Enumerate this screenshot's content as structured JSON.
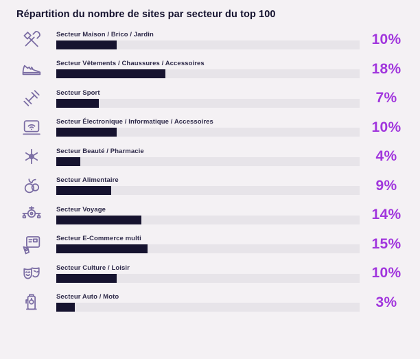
{
  "page": {
    "title": "Répartition du nombre de sites par secteur du top 100",
    "background": "#f4f1f4"
  },
  "colors": {
    "accent_percent": "#a136dd",
    "bar_fill": "#16132f",
    "bar_track": "#e7e4e9",
    "title_text": "#14122e",
    "label_text": "#2e2a49",
    "icon_stroke": "#5c4b8f"
  },
  "chart_data": {
    "type": "bar",
    "orientation": "horizontal",
    "title": "Répartition du nombre de sites par secteur du top 100",
    "unit": "%",
    "xlabel": "",
    "ylabel": "",
    "grid": false,
    "legend": "none",
    "value_axis_max": 50,
    "categories": [
      "Secteur Maison / Brico / Jardin",
      "Secteur Vêtements /  Chaussures / Accessoires",
      "Secteur Sport",
      "Secteur Électronique / Informatique / Accessoires",
      "Secteur Beauté / Pharmacie",
      "Secteur Alimentaire",
      "Secteur Voyage",
      "Secteur E-Commerce multi",
      "Secteur Culture / Loisir",
      "Secteur Auto / Moto"
    ],
    "values": [
      10,
      18,
      7,
      10,
      4,
      9,
      14,
      15,
      10,
      3
    ],
    "value_labels": [
      "10%",
      "18%",
      "7%",
      "10%",
      "4%",
      "9%",
      "14%",
      "15%",
      "10%",
      "3%"
    ],
    "icons": [
      "tools-icon",
      "sneaker-icon",
      "dumbbell-icon",
      "laptop-wifi-icon",
      "medical-cross-icon",
      "food-icon",
      "airplane-icon",
      "ecommerce-icon",
      "theater-masks-icon",
      "fuel-pump-icon"
    ]
  }
}
